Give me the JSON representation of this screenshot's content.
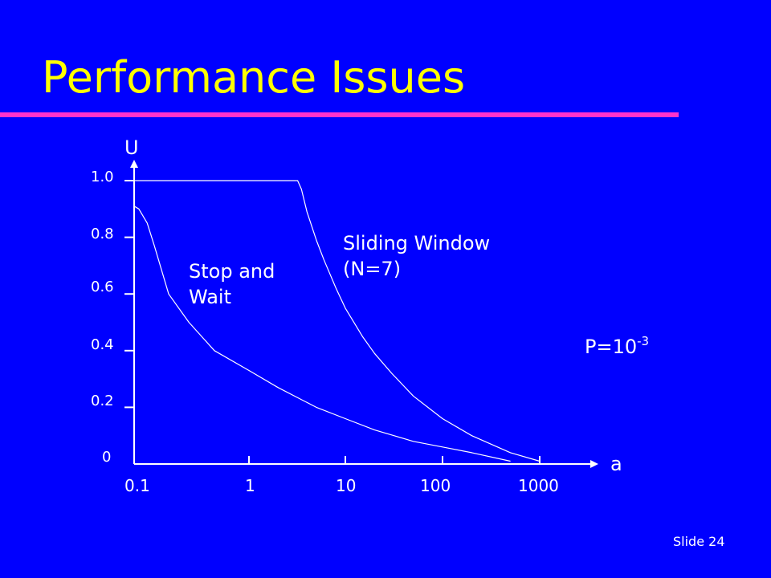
{
  "slide": {
    "title": "Performance Issues",
    "footer": "Slide 24",
    "colors": {
      "background": "#0000ff",
      "title": "#ffff00",
      "rule": "#ff33cc",
      "foreground": "#ffffff"
    }
  },
  "chart_data": {
    "type": "line",
    "ylabel": "U",
    "xlabel": "a",
    "xscale": "log",
    "xlim": [
      0.1,
      1000
    ],
    "ylim": [
      0,
      1.0
    ],
    "x_ticks": [
      "0.1",
      "1",
      "10",
      "100",
      "1000"
    ],
    "y_ticks": [
      "0",
      "0.2",
      "0.4",
      "0.6",
      "0.8",
      "1.0"
    ],
    "grid": false,
    "annotations": {
      "stop_and_wait": [
        "Stop and",
        "Wait"
      ],
      "sliding_window": [
        "Sliding Window",
        "(N=7)"
      ],
      "parameter_base": "P=10",
      "parameter_exp": "-3"
    },
    "series": [
      {
        "x": [
          0.1,
          0.11,
          0.13,
          0.15,
          0.2,
          0.3,
          0.5,
          1,
          2,
          5,
          10,
          20,
          50,
          100,
          200,
          500
        ],
        "y": [
          0.91,
          0.9,
          0.85,
          0.77,
          0.6,
          0.5,
          0.4,
          0.33,
          0.27,
          0.2,
          0.16,
          0.12,
          0.08,
          0.06,
          0.04,
          0.01
        ]
      },
      {
        "x": [
          0.1,
          0.5,
          1,
          2,
          3,
          3.2,
          3.5,
          4,
          5,
          6,
          8,
          10,
          15,
          20,
          30,
          50,
          100,
          200,
          500,
          1000
        ],
        "y": [
          1.0,
          1.0,
          1.0,
          1.0,
          1.0,
          1.0,
          0.97,
          0.89,
          0.79,
          0.72,
          0.62,
          0.55,
          0.45,
          0.39,
          0.32,
          0.24,
          0.16,
          0.1,
          0.04,
          0.01
        ]
      }
    ]
  }
}
